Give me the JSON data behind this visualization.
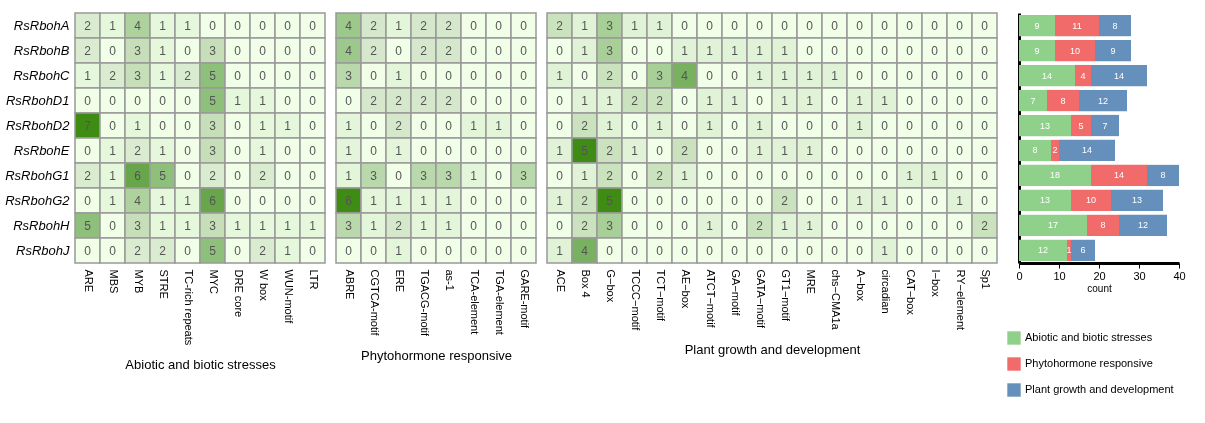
{
  "chart_data": [
    {
      "type": "heatmap",
      "xlabel": "Abiotic and biotic stresses",
      "data_labels": true,
      "categories": [
        "ARE",
        "MBS",
        "MYB",
        "STRE",
        "TC-rich repeats",
        "MYC",
        "DRE core",
        "W box",
        "WUN-motif",
        "LTR"
      ],
      "y_categories": [
        "RsRbohA",
        "RsRbohB",
        "RsRbohC",
        "RsRbohD1",
        "RsRbohD2",
        "RsRbohE",
        "RsRbohG1",
        "RsRbohG2",
        "RsRbohH",
        "RsRbohJ"
      ],
      "cells": [
        [
          2,
          1,
          4,
          1,
          1,
          0,
          0,
          0,
          0,
          0
        ],
        [
          2,
          0,
          3,
          1,
          0,
          3,
          0,
          0,
          0,
          0
        ],
        [
          1,
          2,
          3,
          1,
          2,
          5,
          0,
          0,
          0,
          0
        ],
        [
          0,
          0,
          0,
          0,
          0,
          5,
          1,
          1,
          0,
          0
        ],
        [
          7,
          0,
          1,
          0,
          0,
          3,
          0,
          1,
          1,
          0
        ],
        [
          0,
          1,
          2,
          1,
          0,
          3,
          0,
          1,
          0,
          0
        ],
        [
          2,
          1,
          6,
          5,
          0,
          2,
          0,
          2,
          0,
          0
        ],
        [
          0,
          1,
          4,
          1,
          1,
          6,
          0,
          0,
          0,
          0
        ],
        [
          5,
          0,
          3,
          1,
          1,
          3,
          1,
          1,
          1,
          1
        ],
        [
          0,
          0,
          2,
          2,
          0,
          5,
          0,
          2,
          1,
          0
        ]
      ]
    },
    {
      "type": "heatmap",
      "xlabel": "Phytohormone responsive",
      "tick_labels": "x",
      "data_labels": true,
      "categories": [
        "ABRE",
        "CGTCA-motif",
        "ERE",
        "TGACG-motif",
        "as-1",
        "TCA-element",
        "TGA-element",
        "GARE-motif"
      ],
      "y_categories": [
        null,
        null,
        null,
        null,
        null,
        null,
        null,
        null,
        null,
        null
      ],
      "cells": [
        [
          4,
          2,
          1,
          2,
          2,
          0,
          0,
          0
        ],
        [
          4,
          2,
          0,
          2,
          2,
          0,
          0,
          0
        ],
        [
          3,
          0,
          1,
          0,
          0,
          0,
          0,
          0
        ],
        [
          0,
          2,
          2,
          2,
          2,
          0,
          0,
          0
        ],
        [
          1,
          0,
          2,
          0,
          0,
          1,
          1,
          0
        ],
        [
          1,
          0,
          1,
          0,
          0,
          0,
          0,
          0
        ],
        [
          1,
          3,
          0,
          3,
          3,
          1,
          0,
          3
        ],
        [
          6,
          1,
          1,
          1,
          1,
          0,
          0,
          0
        ],
        [
          3,
          1,
          2,
          1,
          1,
          0,
          0,
          0
        ],
        [
          0,
          0,
          1,
          0,
          0,
          0,
          0,
          0
        ]
      ]
    },
    {
      "type": "heatmap",
      "xlabel": "Plant growth and development",
      "tick_labels": "x",
      "data_labels": true,
      "categories": [
        "ACE",
        "Box 4",
        "G−box",
        "TCCC−motif",
        "TCT−motif",
        "AE−box",
        "ATCT−motif",
        "GA−motif",
        "GATA−motif",
        "GT1−motif",
        "MRE",
        "chs−CMA1a",
        "A−box",
        "circadian",
        "CAT−box",
        "I−box",
        "RY−element",
        "Sp1"
      ],
      "y_categories": [
        null,
        null,
        null,
        null,
        null,
        null,
        null,
        null,
        null,
        null
      ],
      "cells": [
        [
          2,
          1,
          3,
          1,
          1,
          0,
          0,
          0,
          0,
          0,
          0,
          0,
          0,
          0,
          0,
          0,
          0,
          0
        ],
        [
          0,
          1,
          3,
          0,
          0,
          1,
          1,
          1,
          1,
          1,
          0,
          0,
          0,
          0,
          0,
          0,
          0,
          0
        ],
        [
          1,
          0,
          2,
          0,
          3,
          4,
          0,
          0,
          1,
          1,
          1,
          1,
          0,
          0,
          0,
          0,
          0,
          0
        ],
        [
          0,
          1,
          1,
          2,
          2,
          0,
          1,
          1,
          0,
          1,
          1,
          0,
          1,
          1,
          0,
          0,
          0,
          0
        ],
        [
          0,
          2,
          1,
          0,
          1,
          0,
          1,
          0,
          1,
          0,
          0,
          0,
          1,
          0,
          0,
          0,
          0,
          0
        ],
        [
          1,
          5,
          2,
          1,
          0,
          2,
          0,
          0,
          1,
          1,
          1,
          0,
          0,
          0,
          0,
          0,
          0,
          0
        ],
        [
          0,
          1,
          2,
          0,
          2,
          1,
          0,
          0,
          0,
          0,
          0,
          0,
          0,
          0,
          1,
          1,
          0,
          0
        ],
        [
          1,
          2,
          5,
          0,
          0,
          0,
          0,
          0,
          0,
          2,
          0,
          0,
          1,
          1,
          0,
          0,
          1,
          0
        ],
        [
          0,
          2,
          3,
          0,
          0,
          0,
          1,
          0,
          2,
          1,
          1,
          0,
          0,
          0,
          0,
          0,
          0,
          2
        ],
        [
          1,
          4,
          0,
          0,
          0,
          0,
          0,
          0,
          0,
          0,
          0,
          0,
          0,
          1,
          0,
          0,
          0,
          0
        ]
      ]
    },
    {
      "type": "bar",
      "orientation": "horizontal",
      "stacked": true,
      "data_labels": true,
      "xlabel": "count",
      "legend": "bottom",
      "tick_labels": "x",
      "categories": [
        null,
        null,
        null,
        null,
        null,
        null,
        null,
        null,
        null,
        null
      ],
      "xlim": [
        0,
        40
      ],
      "xticks": [
        0,
        10,
        20,
        30,
        40
      ],
      "series": [
        {
          "name": "Abiotic and biotic stresses",
          "color": "#8fd18a",
          "values": [
            9,
            9,
            14,
            7,
            13,
            8,
            18,
            13,
            17,
            12
          ]
        },
        {
          "name": "Phytohormone responsive",
          "color": "#f26b6b",
          "values": [
            11,
            10,
            4,
            8,
            5,
            2,
            14,
            10,
            8,
            1
          ]
        },
        {
          "name": "Plant growth and development",
          "color": "#6590bb",
          "values": [
            8,
            9,
            14,
            12,
            7,
            14,
            8,
            13,
            12,
            6
          ]
        }
      ]
    }
  ]
}
